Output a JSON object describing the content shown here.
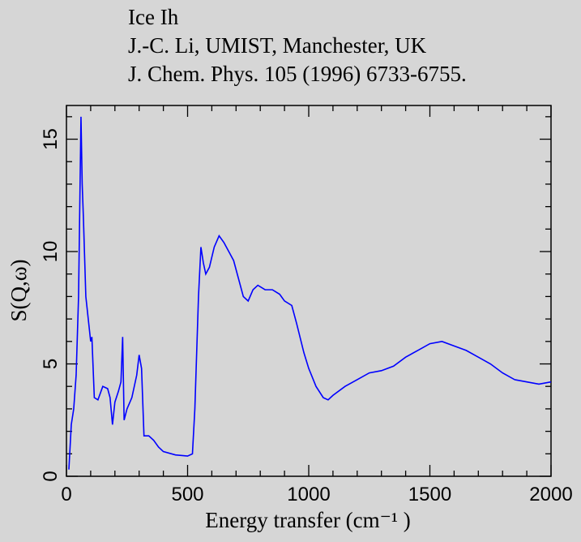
{
  "chart_data": {
    "type": "line",
    "title_lines": [
      "Ice Ih",
      "J.-C. Li, UMIST, Manchester, UK",
      "J. Chem. Phys. 105 (1996) 6733-6755."
    ],
    "xlabel": "Energy transfer (cm⁻¹ )",
    "ylabel": "S(Q,ω)",
    "xlim": [
      0,
      2000
    ],
    "ylim": [
      0,
      16.5
    ],
    "xticks": [
      0,
      500,
      1000,
      1500,
      2000
    ],
    "yticks": [
      0,
      5,
      10,
      15
    ],
    "xminorticks": [
      100,
      200,
      300,
      400,
      600,
      700,
      800,
      900,
      1100,
      1200,
      1300,
      1400,
      1600,
      1700,
      1800,
      1900
    ],
    "yminorticks": [
      1,
      2,
      3,
      4,
      6,
      7,
      8,
      9,
      11,
      12,
      13,
      14,
      16
    ],
    "x": [
      10,
      20,
      30,
      40,
      50,
      55,
      60,
      65,
      70,
      80,
      90,
      100,
      105,
      115,
      130,
      150,
      170,
      180,
      190,
      200,
      215,
      225,
      232,
      238,
      250,
      270,
      290,
      300,
      310,
      320,
      340,
      360,
      380,
      400,
      450,
      500,
      520,
      530,
      545,
      555,
      565,
      575,
      590,
      610,
      630,
      650,
      670,
      690,
      710,
      730,
      750,
      770,
      790,
      820,
      850,
      880,
      900,
      930,
      950,
      980,
      1000,
      1030,
      1060,
      1080,
      1100,
      1150,
      1200,
      1250,
      1300,
      1350,
      1400,
      1450,
      1500,
      1550,
      1600,
      1650,
      1700,
      1750,
      1800,
      1850,
      1900,
      1950,
      2000
    ],
    "series": [
      {
        "name": "S(Q,ω)",
        "color": "#0000ff",
        "values": [
          0.3,
          2.3,
          3.0,
          4.5,
          8.0,
          12,
          16.0,
          13,
          11.5,
          8,
          7,
          6,
          6.2,
          3.5,
          3.4,
          4.0,
          3.9,
          3.5,
          2.3,
          3.3,
          3.8,
          4.2,
          6.2,
          2.5,
          3.0,
          3.5,
          4.5,
          5.4,
          4.8,
          1.8,
          1.8,
          1.6,
          1.3,
          1.1,
          0.95,
          0.9,
          1.0,
          3,
          8,
          10.2,
          9.5,
          9.0,
          9.3,
          10.2,
          10.7,
          10.4,
          10.0,
          9.6,
          8.8,
          8.0,
          7.8,
          8.3,
          8.5,
          8.3,
          8.3,
          8.1,
          7.8,
          7.6,
          6.8,
          5.5,
          4.8,
          4.0,
          3.5,
          3.4,
          3.6,
          4.0,
          4.3,
          4.6,
          4.7,
          4.9,
          5.3,
          5.6,
          5.9,
          6.0,
          5.8,
          5.6,
          5.3,
          5.0,
          4.6,
          4.3,
          4.2,
          4.1,
          4.2
        ]
      }
    ]
  }
}
